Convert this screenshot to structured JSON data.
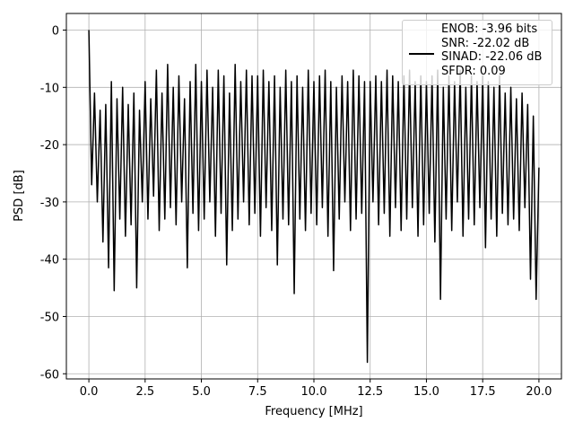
{
  "chart_data": {
    "type": "line",
    "xlabel": "Frequency [MHz]",
    "ylabel": "PSD [dB]",
    "xlim": [
      -1,
      21
    ],
    "ylim": [
      -60.9,
      2.9
    ],
    "xticks": [
      {
        "value": 0,
        "label": "0.0"
      },
      2.5,
      {
        "value": 5,
        "label": "5.0"
      },
      7.5,
      {
        "value": 10,
        "label": "10.0"
      },
      12.5,
      {
        "value": 15,
        "label": "15.0"
      },
      17.5,
      {
        "value": 20,
        "label": "20.0"
      }
    ],
    "yticks": [
      0,
      -10,
      -20,
      -30,
      -40,
      -50,
      -60
    ],
    "grid": true,
    "legend": "upper right",
    "x": [
      0,
      0.125,
      0.25,
      0.375,
      0.5,
      0.625,
      0.75,
      0.875,
      1,
      1.125,
      1.25,
      1.375,
      1.5,
      1.625,
      1.75,
      1.875,
      2,
      2.125,
      2.25,
      2.375,
      2.5,
      2.625,
      2.75,
      2.875,
      3,
      3.125,
      3.25,
      3.375,
      3.5,
      3.625,
      3.75,
      3.875,
      4,
      4.125,
      4.25,
      4.375,
      4.5,
      4.625,
      4.75,
      4.875,
      5,
      5.125,
      5.25,
      5.375,
      5.5,
      5.625,
      5.75,
      5.875,
      6,
      6.125,
      6.25,
      6.375,
      6.5,
      6.625,
      6.75,
      6.875,
      7,
      7.125,
      7.25,
      7.375,
      7.5,
      7.625,
      7.75,
      7.875,
      8,
      8.125,
      8.25,
      8.375,
      8.5,
      8.625,
      8.75,
      8.875,
      9,
      9.125,
      9.25,
      9.375,
      9.5,
      9.625,
      9.75,
      9.875,
      10,
      10.125,
      10.25,
      10.375,
      10.5,
      10.625,
      10.75,
      10.875,
      11,
      11.125,
      11.25,
      11.375,
      11.5,
      11.625,
      11.75,
      11.875,
      12,
      12.125,
      12.25,
      12.375,
      12.5,
      12.625,
      12.75,
      12.875,
      13,
      13.125,
      13.25,
      13.375,
      13.5,
      13.625,
      13.75,
      13.875,
      14,
      14.125,
      14.25,
      14.375,
      14.5,
      14.625,
      14.75,
      14.875,
      15,
      15.125,
      15.25,
      15.375,
      15.5,
      15.625,
      15.75,
      15.875,
      16,
      16.125,
      16.25,
      16.375,
      16.5,
      16.625,
      16.75,
      16.875,
      17,
      17.125,
      17.25,
      17.375,
      17.5,
      17.625,
      17.75,
      17.875,
      18,
      18.125,
      18.25,
      18.375,
      18.5,
      18.625,
      18.75,
      18.875,
      19,
      19.125,
      19.25,
      19.375,
      19.5,
      19.625,
      19.75,
      19.875,
      20
    ],
    "series": [
      {
        "name": "ENOB: -3.96 bits\nSNR: -22.02 dB\nSINAD: -22.06 dB\nSFDR: 0.09",
        "color": "#000000",
        "values": [
          0,
          -27,
          -11,
          -30,
          -14,
          -37,
          -13,
          -41.5,
          -9,
          -45.5,
          -12,
          -33,
          -10,
          -36,
          -13,
          -34,
          -11,
          -45,
          -14,
          -30,
          -9,
          -33,
          -12,
          -29,
          -7,
          -35,
          -11,
          -33,
          -6,
          -31,
          -10,
          -34,
          -8,
          -30,
          -12,
          -41.5,
          -9,
          -32,
          -6,
          -35,
          -9,
          -33,
          -7,
          -30,
          -10,
          -36,
          -7,
          -32,
          -8,
          -41,
          -11,
          -35,
          -6,
          -33,
          -9,
          -30,
          -7,
          -34,
          -8,
          -32,
          -8,
          -36,
          -7,
          -31,
          -9,
          -35,
          -8,
          -41,
          -10,
          -33,
          -7,
          -34,
          -9,
          -46,
          -8,
          -33,
          -10,
          -35,
          -7,
          -32,
          -9,
          -34,
          -8,
          -31,
          -7,
          -36,
          -9,
          -42,
          -10,
          -33,
          -8,
          -30,
          -9,
          -35,
          -7,
          -33,
          -8,
          -32,
          -9,
          -58,
          -9,
          -30,
          -8,
          -34,
          -9,
          -32,
          -7,
          -36,
          -8,
          -31,
          -9,
          -35,
          -8,
          -33,
          -7,
          -31,
          -9,
          -36,
          -8,
          -34,
          -9,
          -32,
          -8,
          -37,
          -7,
          -47,
          -10,
          -33,
          -8,
          -35,
          -9,
          -30,
          -7,
          -36,
          -10,
          -33,
          -8,
          -34,
          -9,
          -31,
          -8,
          -38,
          -9,
          -33,
          -10,
          -36,
          -8,
          -32,
          -11,
          -34,
          -10,
          -33,
          -12,
          -35,
          -11,
          -31,
          -13,
          -43.5,
          -15,
          -47,
          -24
        ]
      }
    ]
  }
}
